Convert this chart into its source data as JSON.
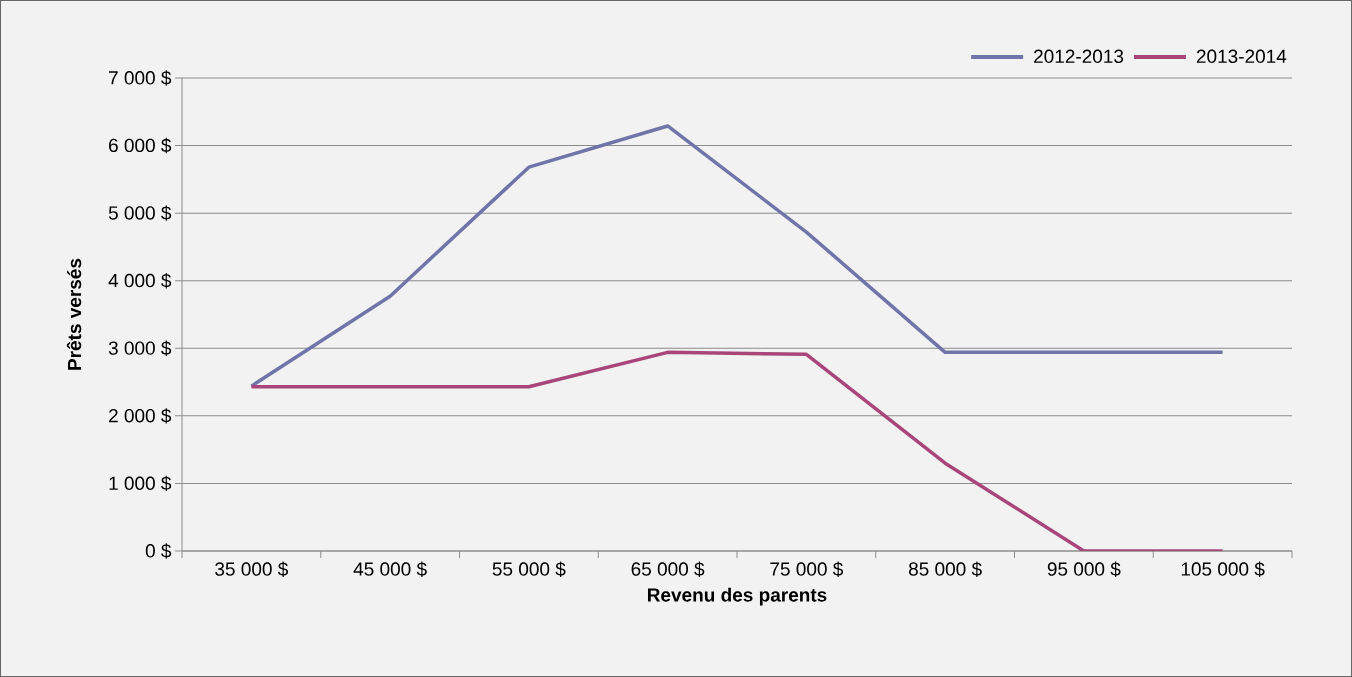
{
  "chart_data": {
    "type": "line",
    "xlabel": "Revenu des parents",
    "ylabel": "Prêts versés",
    "categories": [
      "35 000 $",
      "45 000 $",
      "55 000 $",
      "65 000 $",
      "75 000 $",
      "85 000 $",
      "95 000 $",
      "105 000 $"
    ],
    "series": [
      {
        "name": "2012-2013",
        "color": "#7074a8",
        "values": [
          2440,
          3770,
          5680,
          6290,
          4720,
          2940,
          2940,
          2940
        ]
      },
      {
        "name": "2013-2014",
        "color": "#a8467a",
        "values": [
          2430,
          2430,
          2430,
          2940,
          2910,
          1300,
          0,
          0
        ]
      }
    ],
    "ylim": [
      0,
      7000
    ],
    "yticks": [
      {
        "value": 0,
        "label": "0 $"
      },
      {
        "value": 1000,
        "label": "1 000 $"
      },
      {
        "value": 2000,
        "label": "2 000 $"
      },
      {
        "value": 3000,
        "label": "3 000 $"
      },
      {
        "value": 4000,
        "label": "4 000 $"
      },
      {
        "value": 5000,
        "label": "5 000 $"
      },
      {
        "value": 6000,
        "label": "6 000 $"
      },
      {
        "value": 7000,
        "label": "7 000 $"
      }
    ],
    "grid": "y",
    "legend": "top right",
    "marker": "none",
    "line_style": "solid"
  }
}
